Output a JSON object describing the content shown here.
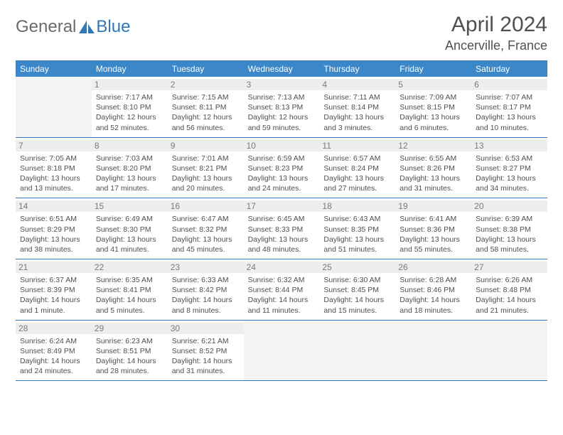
{
  "colors": {
    "header_bg": "#3b87c8",
    "border": "#2f78b9",
    "daynum_bg": "#eeeeee",
    "empty_bg": "#f3f3f3",
    "text_gray": "#6a6a6a",
    "text_body": "#4f4f4f",
    "logo_blue": "#2f78b9"
  },
  "logo": {
    "text1": "General",
    "text2": "Blue"
  },
  "title": "April 2024",
  "location": "Ancerville, France",
  "day_headers": [
    "Sunday",
    "Monday",
    "Tuesday",
    "Wednesday",
    "Thursday",
    "Friday",
    "Saturday"
  ],
  "weeks": [
    [
      null,
      {
        "n": "1",
        "sr": "7:17 AM",
        "ss": "8:10 PM",
        "dl": "12 hours and 52 minutes."
      },
      {
        "n": "2",
        "sr": "7:15 AM",
        "ss": "8:11 PM",
        "dl": "12 hours and 56 minutes."
      },
      {
        "n": "3",
        "sr": "7:13 AM",
        "ss": "8:13 PM",
        "dl": "12 hours and 59 minutes."
      },
      {
        "n": "4",
        "sr": "7:11 AM",
        "ss": "8:14 PM",
        "dl": "13 hours and 3 minutes."
      },
      {
        "n": "5",
        "sr": "7:09 AM",
        "ss": "8:15 PM",
        "dl": "13 hours and 6 minutes."
      },
      {
        "n": "6",
        "sr": "7:07 AM",
        "ss": "8:17 PM",
        "dl": "13 hours and 10 minutes."
      }
    ],
    [
      {
        "n": "7",
        "sr": "7:05 AM",
        "ss": "8:18 PM",
        "dl": "13 hours and 13 minutes."
      },
      {
        "n": "8",
        "sr": "7:03 AM",
        "ss": "8:20 PM",
        "dl": "13 hours and 17 minutes."
      },
      {
        "n": "9",
        "sr": "7:01 AM",
        "ss": "8:21 PM",
        "dl": "13 hours and 20 minutes."
      },
      {
        "n": "10",
        "sr": "6:59 AM",
        "ss": "8:23 PM",
        "dl": "13 hours and 24 minutes."
      },
      {
        "n": "11",
        "sr": "6:57 AM",
        "ss": "8:24 PM",
        "dl": "13 hours and 27 minutes."
      },
      {
        "n": "12",
        "sr": "6:55 AM",
        "ss": "8:26 PM",
        "dl": "13 hours and 31 minutes."
      },
      {
        "n": "13",
        "sr": "6:53 AM",
        "ss": "8:27 PM",
        "dl": "13 hours and 34 minutes."
      }
    ],
    [
      {
        "n": "14",
        "sr": "6:51 AM",
        "ss": "8:29 PM",
        "dl": "13 hours and 38 minutes."
      },
      {
        "n": "15",
        "sr": "6:49 AM",
        "ss": "8:30 PM",
        "dl": "13 hours and 41 minutes."
      },
      {
        "n": "16",
        "sr": "6:47 AM",
        "ss": "8:32 PM",
        "dl": "13 hours and 45 minutes."
      },
      {
        "n": "17",
        "sr": "6:45 AM",
        "ss": "8:33 PM",
        "dl": "13 hours and 48 minutes."
      },
      {
        "n": "18",
        "sr": "6:43 AM",
        "ss": "8:35 PM",
        "dl": "13 hours and 51 minutes."
      },
      {
        "n": "19",
        "sr": "6:41 AM",
        "ss": "8:36 PM",
        "dl": "13 hours and 55 minutes."
      },
      {
        "n": "20",
        "sr": "6:39 AM",
        "ss": "8:38 PM",
        "dl": "13 hours and 58 minutes."
      }
    ],
    [
      {
        "n": "21",
        "sr": "6:37 AM",
        "ss": "8:39 PM",
        "dl": "14 hours and 1 minute."
      },
      {
        "n": "22",
        "sr": "6:35 AM",
        "ss": "8:41 PM",
        "dl": "14 hours and 5 minutes."
      },
      {
        "n": "23",
        "sr": "6:33 AM",
        "ss": "8:42 PM",
        "dl": "14 hours and 8 minutes."
      },
      {
        "n": "24",
        "sr": "6:32 AM",
        "ss": "8:44 PM",
        "dl": "14 hours and 11 minutes."
      },
      {
        "n": "25",
        "sr": "6:30 AM",
        "ss": "8:45 PM",
        "dl": "14 hours and 15 minutes."
      },
      {
        "n": "26",
        "sr": "6:28 AM",
        "ss": "8:46 PM",
        "dl": "14 hours and 18 minutes."
      },
      {
        "n": "27",
        "sr": "6:26 AM",
        "ss": "8:48 PM",
        "dl": "14 hours and 21 minutes."
      }
    ],
    [
      {
        "n": "28",
        "sr": "6:24 AM",
        "ss": "8:49 PM",
        "dl": "14 hours and 24 minutes."
      },
      {
        "n": "29",
        "sr": "6:23 AM",
        "ss": "8:51 PM",
        "dl": "14 hours and 28 minutes."
      },
      {
        "n": "30",
        "sr": "6:21 AM",
        "ss": "8:52 PM",
        "dl": "14 hours and 31 minutes."
      },
      null,
      null,
      null,
      null
    ]
  ],
  "labels": {
    "sunrise": "Sunrise:",
    "sunset": "Sunset:",
    "daylight": "Daylight:"
  }
}
